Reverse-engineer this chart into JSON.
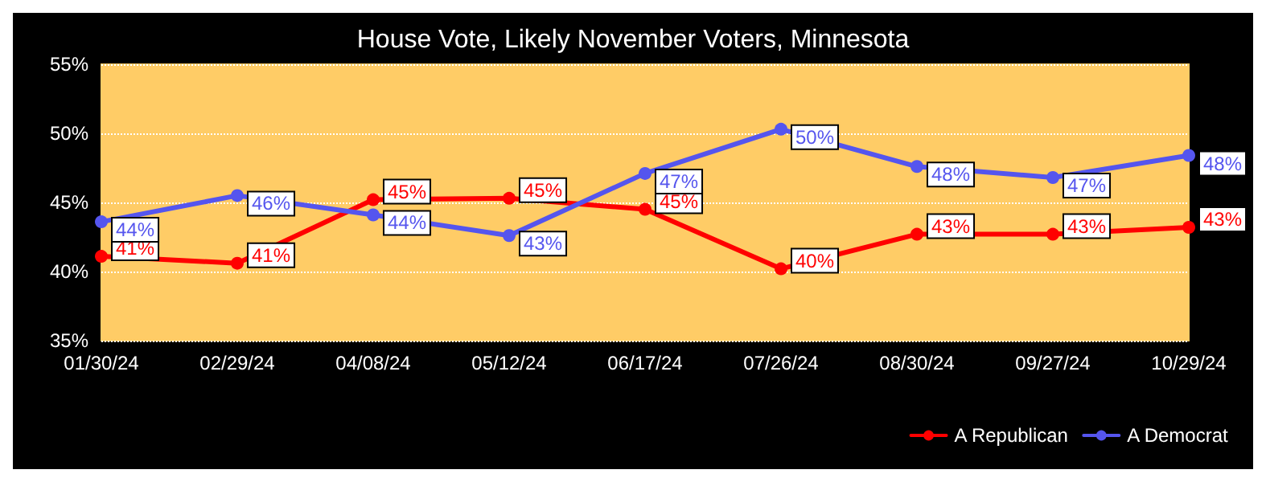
{
  "chart_data": {
    "type": "line",
    "title": "House Vote, Likely November Voters, Minnesota",
    "categories": [
      "01/30/24",
      "02/29/24",
      "04/08/24",
      "05/12/24",
      "06/17/24",
      "07/26/24",
      "08/30/24",
      "09/27/24",
      "10/29/24"
    ],
    "series": [
      {
        "name": "A Republican",
        "color": "#ff0000",
        "values": [
          41.1,
          40.6,
          45.2,
          45.3,
          44.5,
          40.2,
          42.7,
          42.7,
          43.2
        ],
        "value_labels": [
          "41%",
          "41%",
          "45%",
          "45%",
          "45%",
          "40%",
          "43%",
          "43%",
          "43%"
        ]
      },
      {
        "name": "A Democrat",
        "color": "#5555ee",
        "values": [
          43.6,
          45.5,
          44.1,
          42.6,
          47.1,
          50.3,
          47.6,
          46.8,
          48.4
        ],
        "value_labels": [
          "44%",
          "46%",
          "44%",
          "43%",
          "47%",
          "50%",
          "48%",
          "47%",
          "48%"
        ]
      }
    ],
    "ylim": [
      35,
      55
    ],
    "yticks": [
      {
        "value": 35,
        "label": "35%"
      },
      {
        "value": 40,
        "label": "40%"
      },
      {
        "value": 45,
        "label": "45%"
      },
      {
        "value": 50,
        "label": "50%"
      },
      {
        "value": 55,
        "label": "55%"
      }
    ],
    "grid": "y",
    "legend": "bottom right",
    "marker": "circle",
    "line_style": "solid"
  }
}
